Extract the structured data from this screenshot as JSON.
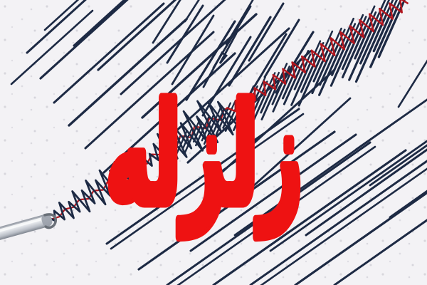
{
  "scene": {
    "headline": "زلزله",
    "headline_color": "#ee1212",
    "palette": {
      "paper": "#f3f2f5",
      "ink_lines": "#1d2a44",
      "ink_trace_red": "#b2161e",
      "pen_metal": "#c9cdd4"
    }
  }
}
